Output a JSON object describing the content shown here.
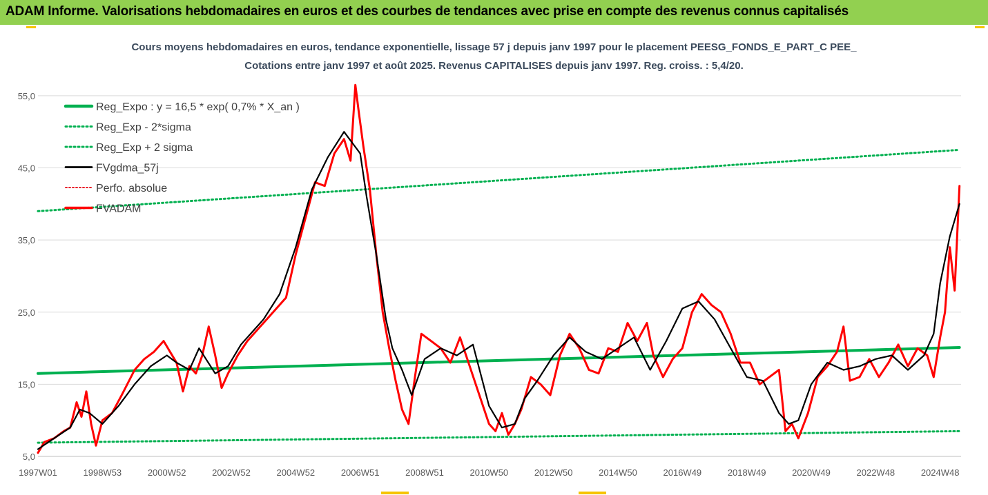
{
  "header": {
    "title": "ADAM Informe. Valorisations hebdomadaires en euros et des courbes de tendances avec prise en compte des revenus connus capitalisés"
  },
  "chart_data": {
    "type": "line",
    "title": "Cours moyens hebdomadaires en euros, tendance exponentielle, lissage 57 j depuis janv 1997  pour le placement PEESG_FONDS_E_PART_C PEE_",
    "subtitle": "Cotations entre janv 1997 et août 2025.  Revenus CAPITALISES depuis janv 1997. Reg. croiss. : 5,4/20.",
    "xlabel": "",
    "ylabel": "",
    "ylim": [
      5,
      57
    ],
    "yticks": [
      "5,0",
      "15,0",
      "25,0",
      "35,0",
      "45,0",
      "55,0"
    ],
    "ytick_values": [
      5,
      15,
      25,
      35,
      45,
      55
    ],
    "xlim": [
      1997.0,
      2025.65
    ],
    "xticks": [
      "1997W01",
      "1998W53",
      "2000W52",
      "2002W52",
      "2004W52",
      "2006W51",
      "2008W51",
      "2010W50",
      "2012W50",
      "2014W50",
      "2016W49",
      "2018W49",
      "2020W49",
      "2022W48",
      "2024W48"
    ],
    "xtick_values": [
      1997.0,
      1999.0,
      2001.0,
      2003.0,
      2005.0,
      2007.0,
      2009.0,
      2011.0,
      2013.0,
      2015.0,
      2017.0,
      2019.0,
      2021.0,
      2023.0,
      2025.0
    ],
    "grid": "horizontal",
    "legend_position": "top-left",
    "series": [
      {
        "name": "Reg_Expo : y = 16,5 * exp( 0,7% *  X_an )",
        "color": "#00b050",
        "style": "solid",
        "x": [
          1997,
          2025.6
        ],
        "values": [
          16.5,
          20.1
        ]
      },
      {
        "name": "Reg_Exp - 2*sigma",
        "color": "#00b050",
        "style": "dotted",
        "x": [
          1997,
          2025.6
        ],
        "values": [
          6.9,
          8.5
        ]
      },
      {
        "name": "Reg_Exp + 2 sigma",
        "color": "#00b050",
        "style": "dotted",
        "x": [
          1997,
          2025.6
        ],
        "values": [
          39.0,
          47.5
        ]
      },
      {
        "name": "FVgdma_57j",
        "color": "#000000",
        "style": "solid",
        "x": [
          1997.0,
          1997.5,
          1998.0,
          1998.3,
          1998.6,
          1999.0,
          1999.5,
          2000.0,
          2000.5,
          2001.0,
          2001.3,
          2001.7,
          2002.0,
          2002.5,
          2002.9,
          2003.3,
          2003.7,
          2004.0,
          2004.5,
          2005.0,
          2005.5,
          2006.0,
          2006.5,
          2007.0,
          2007.2,
          2007.5,
          2007.8,
          2008.0,
          2008.3,
          2008.6,
          2009.0,
          2009.5,
          2010.0,
          2010.5,
          2011.0,
          2011.4,
          2011.8,
          2012.1,
          2012.5,
          2013.0,
          2013.5,
          2014.0,
          2014.5,
          2015.0,
          2015.5,
          2016.0,
          2016.5,
          2017.0,
          2017.5,
          2018.0,
          2018.5,
          2019.0,
          2019.5,
          2020.0,
          2020.3,
          2020.6,
          2021.0,
          2021.5,
          2022.0,
          2022.5,
          2023.0,
          2023.5,
          2024.0,
          2024.5,
          2024.8,
          2025.0,
          2025.3,
          2025.6
        ],
        "values": [
          6.0,
          7.5,
          9.0,
          11.5,
          11.0,
          9.5,
          12.0,
          15.0,
          17.5,
          19.0,
          18.0,
          17.0,
          20.0,
          16.5,
          17.5,
          20.5,
          22.5,
          24.0,
          27.5,
          34.0,
          42.0,
          46.5,
          50.0,
          47.0,
          41.0,
          33.0,
          24.0,
          20.0,
          17.0,
          13.5,
          18.5,
          20.0,
          19.0,
          20.5,
          12.0,
          9.0,
          9.5,
          13.0,
          15.5,
          19.0,
          21.5,
          19.5,
          18.5,
          20.0,
          21.5,
          17.0,
          21.0,
          25.5,
          26.5,
          24.0,
          20.0,
          16.0,
          15.5,
          11.0,
          9.5,
          10.0,
          15.0,
          18.0,
          17.0,
          17.5,
          18.5,
          19.0,
          17.0,
          19.0,
          22.0,
          29.0,
          35.5,
          40.0
        ]
      },
      {
        "name": "Perfo. absolue",
        "color": "#e8212b",
        "style": "dotted",
        "x": [],
        "values": []
      },
      {
        "name": "FVADAM",
        "color": "#ff0000",
        "style": "solid",
        "x": [
          1997.0,
          1997.2,
          1997.5,
          1997.8,
          1998.0,
          1998.2,
          1998.35,
          1998.5,
          1998.65,
          1998.8,
          1999.0,
          1999.3,
          1999.6,
          2000.0,
          2000.3,
          2000.6,
          2000.9,
          2001.1,
          2001.3,
          2001.5,
          2001.7,
          2001.9,
          2002.1,
          2002.3,
          2002.5,
          2002.7,
          2002.9,
          2003.2,
          2003.5,
          2003.8,
          2004.1,
          2004.4,
          2004.7,
          2005.0,
          2005.3,
          2005.6,
          2005.9,
          2006.2,
          2006.5,
          2006.7,
          2006.85,
          2006.95,
          2007.1,
          2007.3,
          2007.5,
          2007.7,
          2007.9,
          2008.1,
          2008.3,
          2008.5,
          2008.7,
          2008.9,
          2009.2,
          2009.5,
          2009.8,
          2010.1,
          2010.4,
          2010.7,
          2011.0,
          2011.2,
          2011.4,
          2011.6,
          2011.8,
          2012.0,
          2012.3,
          2012.6,
          2012.9,
          2013.2,
          2013.5,
          2013.8,
          2014.1,
          2014.4,
          2014.7,
          2015.0,
          2015.3,
          2015.6,
          2015.9,
          2016.1,
          2016.4,
          2016.7,
          2017.0,
          2017.3,
          2017.6,
          2017.9,
          2018.2,
          2018.5,
          2018.8,
          2019.1,
          2019.4,
          2019.7,
          2020.0,
          2020.2,
          2020.4,
          2020.6,
          2020.9,
          2021.2,
          2021.5,
          2021.8,
          2022.0,
          2022.2,
          2022.5,
          2022.8,
          2023.1,
          2023.4,
          2023.7,
          2024.0,
          2024.3,
          2024.6,
          2024.8,
          2025.0,
          2025.15,
          2025.3,
          2025.45,
          2025.6
        ],
        "values": [
          5.5,
          7.0,
          7.5,
          8.5,
          9.0,
          12.5,
          10.5,
          14.0,
          9.5,
          6.5,
          10.0,
          11.0,
          13.5,
          17.0,
          18.5,
          19.5,
          21.0,
          19.5,
          18.0,
          14.0,
          17.5,
          16.5,
          19.0,
          23.0,
          19.0,
          14.5,
          16.5,
          19.0,
          21.0,
          22.5,
          24.0,
          25.5,
          27.0,
          33.0,
          38.0,
          43.0,
          42.5,
          47.0,
          49.0,
          46.0,
          56.5,
          53.0,
          48.0,
          42.0,
          33.0,
          25.0,
          20.0,
          15.5,
          11.5,
          9.5,
          16.0,
          22.0,
          21.0,
          20.0,
          18.0,
          21.5,
          17.5,
          13.5,
          9.5,
          8.5,
          11.0,
          8.0,
          9.5,
          11.5,
          16.0,
          15.0,
          13.5,
          19.0,
          22.0,
          20.0,
          17.0,
          16.5,
          20.0,
          19.5,
          23.5,
          21.0,
          23.5,
          19.0,
          16.0,
          18.5,
          20.0,
          25.0,
          27.5,
          26.0,
          25.0,
          22.0,
          18.0,
          18.0,
          15.0,
          16.0,
          17.0,
          8.5,
          9.5,
          7.5,
          11.0,
          16.0,
          17.5,
          19.5,
          23.0,
          15.5,
          16.0,
          18.5,
          16.0,
          18.0,
          20.5,
          17.5,
          20.0,
          19.0,
          16.0,
          21.5,
          25.0,
          34.0,
          28.0,
          42.5
        ]
      }
    ]
  }
}
